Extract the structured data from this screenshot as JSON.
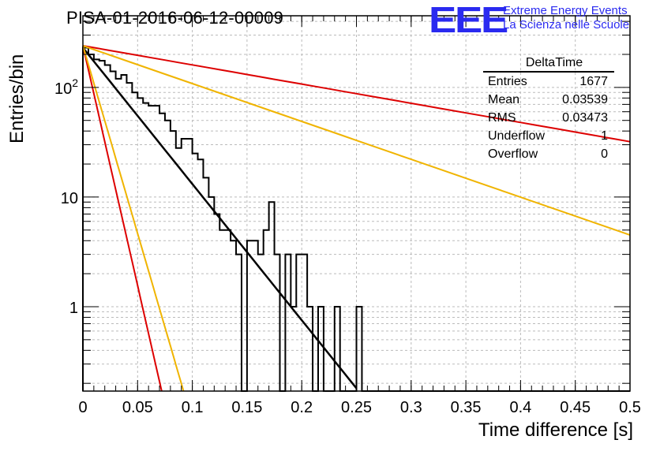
{
  "header": {
    "run_title": "PISA-01-2016-06-12-00009",
    "logo_text": "EEE",
    "org_line1": "Extreme Energy Events",
    "org_line2": "La Scienza nelle Scuole"
  },
  "stats_box": {
    "title": "DeltaTime",
    "rows": [
      {
        "label": "Entries",
        "value": "1677"
      },
      {
        "label": "Mean",
        "value": "0.03539"
      },
      {
        "label": "RMS",
        "value": "0.03473"
      },
      {
        "label": "Underflow",
        "value": "1"
      },
      {
        "label": "Overflow",
        "value": "0"
      }
    ]
  },
  "chart_data": {
    "type": "line",
    "title": "PISA-01-2016-06-12-00009",
    "xlabel": "Time difference [s]",
    "ylabel": "Entries/bin",
    "xlim": [
      0,
      0.5
    ],
    "ylim": [
      0.17,
      450
    ],
    "y_scale": "log",
    "grid": true,
    "x_ticks": [
      "0",
      "0.05",
      "0.1",
      "0.15",
      "0.2",
      "0.25",
      "0.3",
      "0.35",
      "0.4",
      "0.45",
      "0.5"
    ],
    "y_ticks": [
      "1",
      "10",
      "10^2"
    ],
    "histogram": {
      "name": "DeltaTime",
      "bin_width": 0.005,
      "x_start": 0,
      "counts": [
        230,
        200,
        180,
        175,
        160,
        140,
        120,
        130,
        110,
        90,
        80,
        72,
        68,
        68,
        58,
        50,
        40,
        28,
        34,
        34,
        25,
        22,
        15,
        10,
        7,
        5,
        5,
        4,
        3,
        0.15,
        4,
        4,
        3,
        5,
        9,
        3,
        0.15,
        3,
        1,
        3,
        3,
        1,
        0.15,
        1,
        0.15,
        0.15,
        1,
        0.15,
        0.15,
        0.15,
        1,
        0.15,
        0.15,
        0.15,
        0.15,
        0.15,
        0.15,
        0.15,
        0.15,
        0.15,
        0.15,
        0.15,
        0.15,
        0.15,
        0.15,
        0.15,
        0.15,
        0.15,
        0.15,
        0.15,
        0.15,
        0.15,
        0.15,
        0.15,
        0.15,
        0.15,
        0.15,
        0.15,
        0.15,
        0.15,
        0.15,
        0.15,
        0.15,
        0.15,
        0.15,
        0.15,
        0.15,
        0.15,
        0.15,
        0.15,
        0.15,
        0.15,
        0.15,
        0.15,
        0.15,
        0.15,
        0.15,
        0.15,
        0.15,
        0.15
      ],
      "color": "#000000"
    },
    "series": [
      {
        "role": "fit",
        "color": "#000000",
        "x": [
          0,
          0.25
        ],
        "y": [
          230,
          0.18
        ]
      },
      {
        "role": "reference-upper-slow",
        "color": "#dd0000",
        "x": [
          0,
          0.5
        ],
        "y": [
          240,
          32
        ]
      },
      {
        "role": "reference-lower-slow",
        "color": "#f0b400",
        "x": [
          0,
          0.5
        ],
        "y": [
          240,
          4.5
        ]
      },
      {
        "role": "reference-upper-fast",
        "color": "#dd0000",
        "x": [
          0,
          0.072
        ],
        "y": [
          240,
          0.17
        ]
      },
      {
        "role": "reference-lower-fast",
        "color": "#f0b400",
        "x": [
          0,
          0.092
        ],
        "y": [
          240,
          0.17
        ]
      }
    ]
  }
}
